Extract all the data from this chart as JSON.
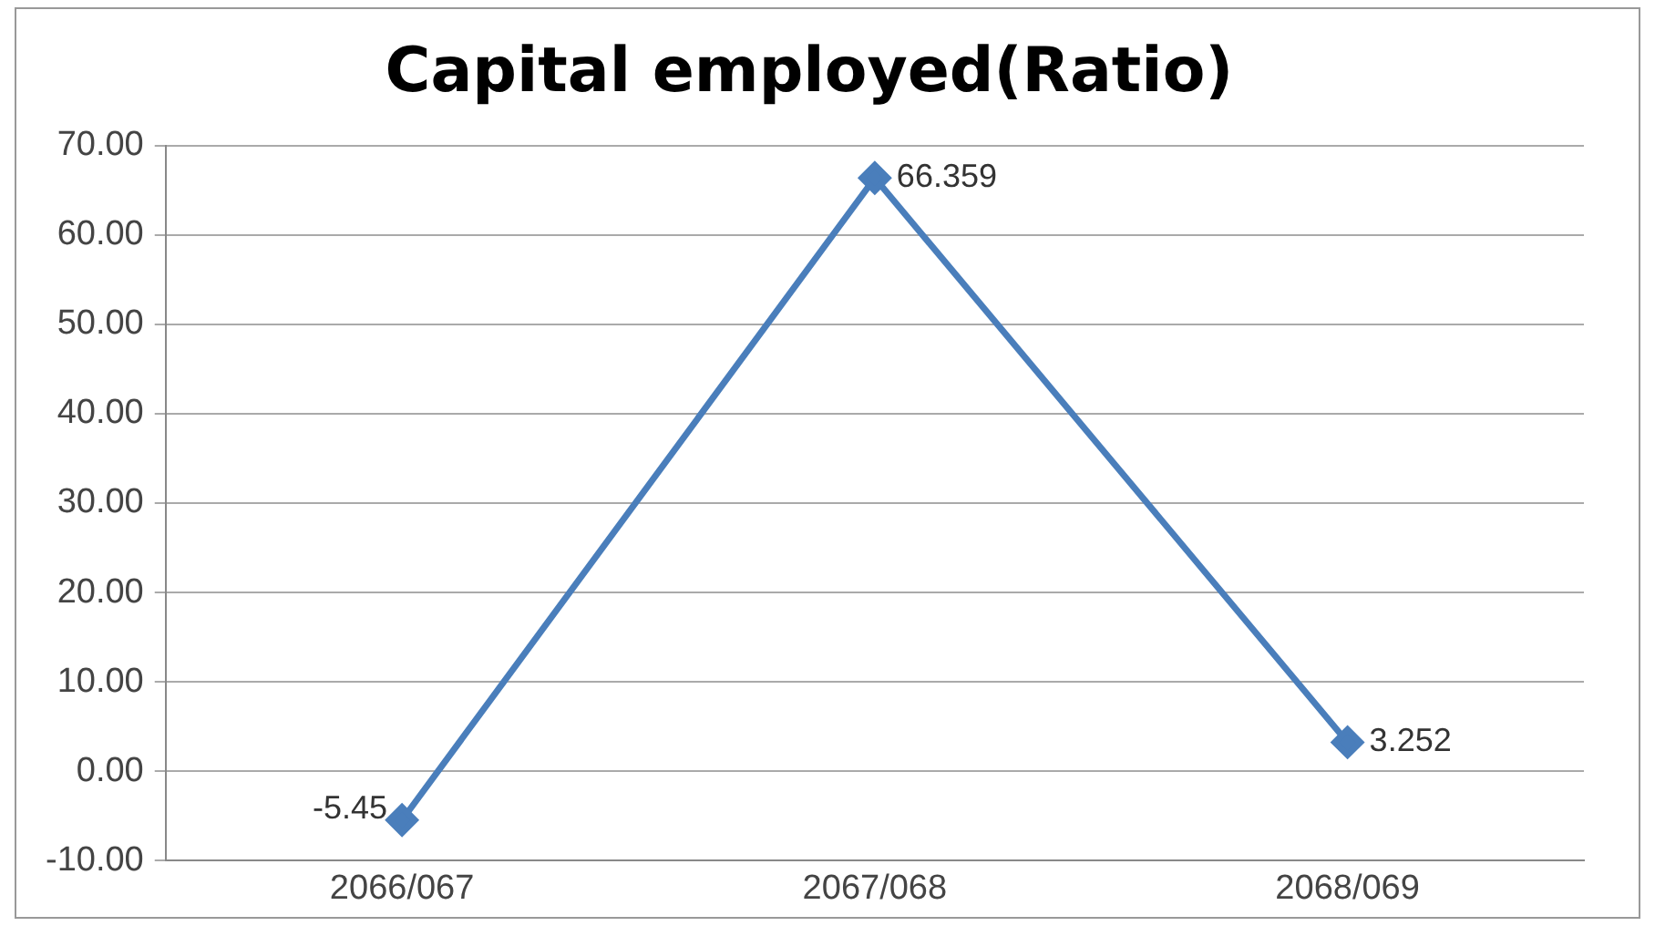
{
  "chart_data": {
    "type": "line",
    "title": "Capital employed(Ratio)",
    "categories": [
      "2066/067",
      "2067/068",
      "2068/069"
    ],
    "values": [
      -5.45,
      66.359,
      3.252
    ],
    "value_labels": [
      "-5.45",
      "66.359",
      "3.252"
    ],
    "color": "#4a7ebb",
    "marker": "diamond",
    "grid": "y",
    "legend": false,
    "ylim": [
      -10,
      70
    ],
    "yticks": [
      {
        "value": -10,
        "label": "-10.00"
      },
      {
        "value": 0,
        "label": "0.00"
      },
      {
        "value": 10,
        "label": "10.00"
      },
      {
        "value": 20,
        "label": "20.00"
      },
      {
        "value": 30,
        "label": "30.00"
      },
      {
        "value": 40,
        "label": "40.00"
      },
      {
        "value": 50,
        "label": "50.00"
      },
      {
        "value": 60,
        "label": "60.00"
      },
      {
        "value": 70,
        "label": "70.00"
      }
    ]
  }
}
